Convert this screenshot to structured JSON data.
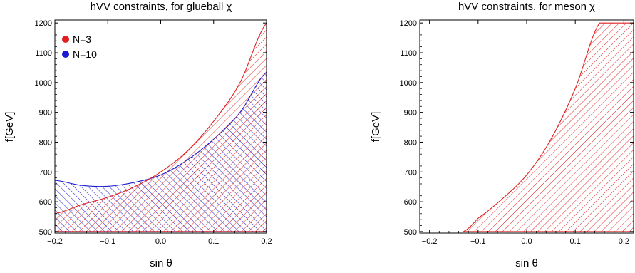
{
  "chart_data": [
    {
      "type": "area",
      "title": "hVV constraints, for glueball χ",
      "xlabel": "sin θ",
      "ylabel": "f[GeV]",
      "xlim": [
        -0.2,
        0.2
      ],
      "ylim": [
        495,
        1210
      ],
      "xticks": [
        "−0.2",
        "−0.1",
        "0.0",
        "0.1",
        "0.2"
      ],
      "xtick_values": [
        -0.2,
        -0.1,
        0.0,
        0.1,
        0.2
      ],
      "yticks": [
        "500",
        "600",
        "700",
        "800",
        "900",
        "1000",
        "1100",
        "1200"
      ],
      "ytick_values": [
        500,
        600,
        700,
        800,
        900,
        1000,
        1100,
        1200
      ],
      "legend_position": "top-left",
      "series": [
        {
          "name": "N=3",
          "color": "#e02020",
          "fill": "hatched",
          "lower": 500,
          "upper_x": [
            -0.2,
            -0.15,
            -0.1,
            -0.05,
            0.0,
            0.05,
            0.1,
            0.15,
            0.2
          ],
          "upper_y": [
            560,
            590,
            615,
            650,
            700,
            770,
            870,
            1000,
            1200
          ]
        },
        {
          "name": "N=10",
          "color": "#1a1ad0",
          "fill": "hatched",
          "lower": 500,
          "upper_x": [
            -0.2,
            -0.15,
            -0.1,
            -0.05,
            0.0,
            0.05,
            0.1,
            0.15,
            0.2
          ],
          "upper_y": [
            672,
            655,
            652,
            665,
            690,
            740,
            810,
            900,
            1035
          ]
        }
      ]
    },
    {
      "type": "area",
      "title": "hVV constraints, for meson χ",
      "xlabel": "sin θ",
      "ylabel": "f[GeV]",
      "xlim": [
        -0.22,
        0.22
      ],
      "ylim": [
        495,
        1210
      ],
      "xticks": [
        "−0.2",
        "−0.1",
        "0.0",
        "0.1",
        "0.2"
      ],
      "xtick_values": [
        -0.2,
        -0.1,
        0.0,
        0.1,
        0.2
      ],
      "yticks": [
        "500",
        "600",
        "700",
        "800",
        "900",
        "1000",
        "1100",
        "1200"
      ],
      "ytick_values": [
        500,
        600,
        700,
        800,
        900,
        1000,
        1100,
        1200
      ],
      "series": [
        {
          "color": "#e02020",
          "fill": "hatched",
          "lower": 500,
          "upper_x": [
            -0.13,
            -0.1,
            -0.05,
            0.0,
            0.05,
            0.1,
            0.15
          ],
          "upper_y": [
            500,
            545,
            610,
            690,
            810,
            980,
            1200
          ],
          "right_x": 0.22,
          "top": 1200
        }
      ]
    }
  ]
}
